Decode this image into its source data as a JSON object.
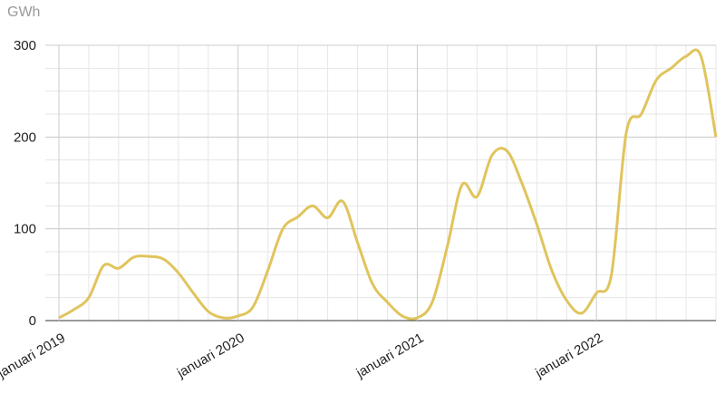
{
  "chart_data": {
    "type": "line",
    "y_label": "GWh",
    "categories": [
      "januari 2019",
      null,
      null,
      null,
      null,
      null,
      null,
      null,
      null,
      null,
      null,
      null,
      "januari 2020",
      null,
      null,
      null,
      null,
      null,
      null,
      null,
      null,
      null,
      null,
      null,
      "januari 2021",
      null,
      null,
      null,
      null,
      null,
      null,
      null,
      null,
      null,
      null,
      null,
      "januari 2022",
      null,
      null,
      null,
      null,
      null,
      null,
      null,
      null
    ],
    "series": [
      {
        "color": "#e0c45c",
        "values": [
          3,
          12,
          25,
          60,
          57,
          69,
          70,
          67,
          52,
          30,
          10,
          3,
          5,
          15,
          55,
          100,
          113,
          125,
          112,
          130,
          85,
          40,
          20,
          5,
          3,
          20,
          80,
          148,
          135,
          180,
          185,
          150,
          105,
          55,
          22,
          8,
          30,
          50,
          205,
          225,
          262,
          275,
          288,
          288,
          200
        ]
      }
    ],
    "ylim": [
      0,
      300
    ],
    "yticks": [
      0,
      100,
      200,
      300
    ],
    "grid": true
  }
}
